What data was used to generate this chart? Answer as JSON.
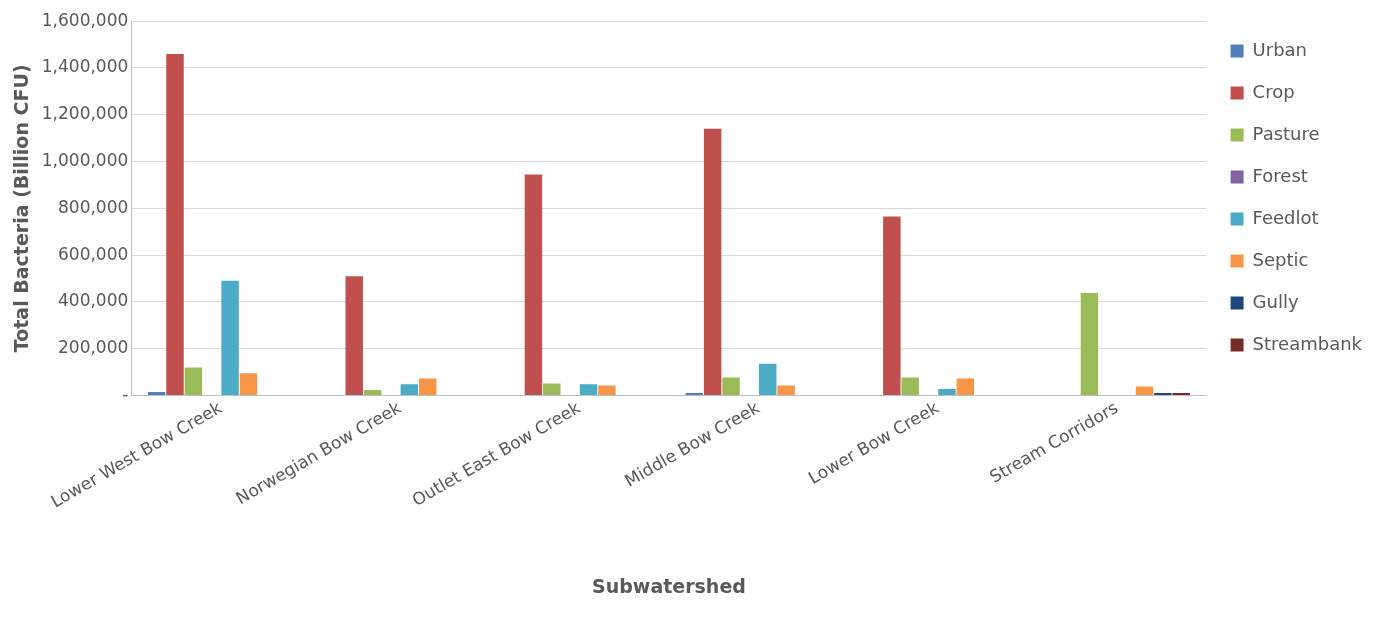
{
  "chart_data": {
    "type": "bar",
    "xlabel": "Subwatershed",
    "ylabel": "Total Bacteria (Billion CFU)",
    "categories": [
      "Lower West Bow Creek",
      "Norwegian Bow Creek",
      "Outlet East Bow Creek",
      "Middle Bow Creek",
      "Lower Bow Creek",
      "Stream Corridors"
    ],
    "series": [
      {
        "name": "Urban",
        "color": "#4f81bd",
        "values": [
          15000,
          0,
          0,
          10000,
          0,
          0
        ]
      },
      {
        "name": "Crop",
        "color": "#c0504d",
        "values": [
          1460000,
          510000,
          945000,
          1140000,
          765000,
          0
        ]
      },
      {
        "name": "Pasture",
        "color": "#9bbb59",
        "values": [
          119000,
          23000,
          51000,
          77000,
          77000,
          438000
        ]
      },
      {
        "name": "Forest",
        "color": "#8064a2",
        "values": [
          0,
          0,
          0,
          0,
          0,
          0
        ]
      },
      {
        "name": "Feedlot",
        "color": "#4bacc6",
        "values": [
          490000,
          48000,
          48000,
          136000,
          28000,
          0
        ]
      },
      {
        "name": "Septic",
        "color": "#f79646",
        "values": [
          95000,
          72000,
          43000,
          43000,
          72000,
          38000
        ]
      },
      {
        "name": "Gully",
        "color": "#1f497d",
        "values": [
          0,
          0,
          0,
          0,
          0,
          10000
        ]
      },
      {
        "name": "Streambank",
        "color": "#772c2a",
        "values": [
          0,
          0,
          0,
          0,
          0,
          10000
        ]
      }
    ],
    "ylim": [
      0,
      1600000
    ],
    "yticks": [
      {
        "value": 0,
        "label": "-"
      },
      {
        "value": 200000,
        "label": "200,000"
      },
      {
        "value": 400000,
        "label": "400,000"
      },
      {
        "value": 600000,
        "label": "600,000"
      },
      {
        "value": 800000,
        "label": "800,000"
      },
      {
        "value": 1000000,
        "label": "1,000,000"
      },
      {
        "value": 1200000,
        "label": "1,200,000"
      },
      {
        "value": 1400000,
        "label": "1,400,000"
      },
      {
        "value": 1600000,
        "label": "1,600,000"
      }
    ],
    "grid": "y",
    "legend": "right"
  }
}
